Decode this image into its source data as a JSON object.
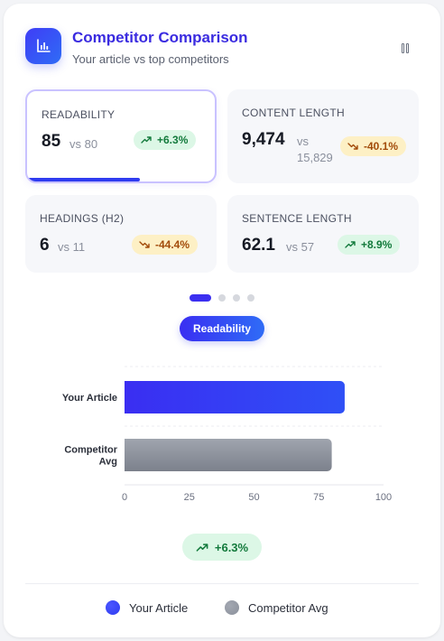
{
  "header": {
    "title": "Competitor Comparison",
    "subtitle": "Your article vs top competitors"
  },
  "metrics": [
    {
      "label": "READABILITY",
      "value": "85",
      "vs": "vs 80",
      "change": "+6.3%",
      "trend": "up",
      "progress": 0.6
    },
    {
      "label": "CONTENT LENGTH",
      "value": "9,474",
      "vs_line1": "vs",
      "vs_line2": "15,829",
      "change": "-40.1%",
      "trend": "down"
    },
    {
      "label": "HEADINGS (H2)",
      "value": "6",
      "vs": "vs 11",
      "change": "-44.4%",
      "trend": "down"
    },
    {
      "label": "SENTENCE LENGTH",
      "value": "62.1",
      "vs": "vs 57",
      "change": "+8.9%",
      "trend": "up"
    }
  ],
  "carousel": {
    "count": 4,
    "active": 0
  },
  "selected_metric_label": "Readability",
  "chart_data": {
    "type": "bar",
    "orientation": "horizontal",
    "categories": [
      "Your Article",
      "Competitor Avg"
    ],
    "series": [
      {
        "name": "Your Article",
        "values": [
          85,
          80
        ]
      }
    ],
    "xlim": [
      0,
      100
    ],
    "xticks": [
      0,
      25,
      50,
      75,
      100
    ],
    "colors": [
      "#2f3cf0",
      "#8b909b"
    ],
    "grid": true
  },
  "summary_change": "+6.3%",
  "legend": [
    {
      "label": "Your Article",
      "color": "#2f3cf0"
    },
    {
      "label": "Competitor Avg",
      "color": "#8b909b"
    }
  ],
  "colors": {
    "accent": "#3a2be0",
    "positive_bg": "#dcf7e6",
    "positive_text": "#137a3c",
    "negative_bg": "#fdf0c5",
    "negative_text": "#a24b0a"
  }
}
